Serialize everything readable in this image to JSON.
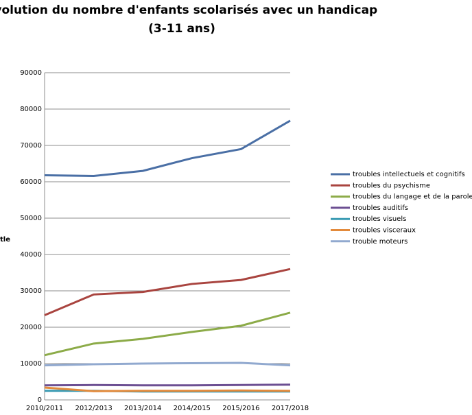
{
  "chart_data": {
    "type": "line",
    "title": "Evolution du nombre d'enfants scolarisés avec un handicap",
    "subtitle": "(3-11 ans)",
    "y_label": "tle",
    "categories": [
      "2010/2011",
      "2012/2013",
      "2013/2014",
      "2014/2015",
      "2015/2016",
      "2017/2018"
    ],
    "series": [
      {
        "name": "troubles intellectuels et cognitifs",
        "color": "#4a6fa5",
        "values": [
          61800,
          61600,
          63000,
          66500,
          69000,
          76800
        ]
      },
      {
        "name": "troubles du psychisme",
        "color": "#a9443f",
        "values": [
          23300,
          29000,
          29700,
          31900,
          33000,
          36000
        ]
      },
      {
        "name": "troubles du langage et de la parole",
        "color": "#8cab48",
        "values": [
          12300,
          15500,
          16800,
          18700,
          20400,
          24000
        ]
      },
      {
        "name": "troubles auditifs",
        "color": "#6c4f92",
        "values": [
          4000,
          4100,
          4000,
          4000,
          4100,
          4200
        ]
      },
      {
        "name": "troubles visuels",
        "color": "#3a9bb3",
        "values": [
          2500,
          2500,
          2300,
          2300,
          2300,
          2300
        ]
      },
      {
        "name": "troubles visceraux",
        "color": "#e38a3b",
        "values": [
          3400,
          2400,
          2500,
          2500,
          2600,
          2500
        ]
      },
      {
        "name": "trouble moteurs",
        "color": "#91a9cf",
        "values": [
          9500,
          9800,
          10000,
          10100,
          10200,
          9500
        ]
      }
    ],
    "ylim": [
      0,
      90000
    ],
    "yticks": [
      0,
      10000,
      20000,
      30000,
      40000,
      50000,
      60000,
      70000,
      80000,
      90000
    ],
    "grid": true,
    "legend": "right"
  }
}
